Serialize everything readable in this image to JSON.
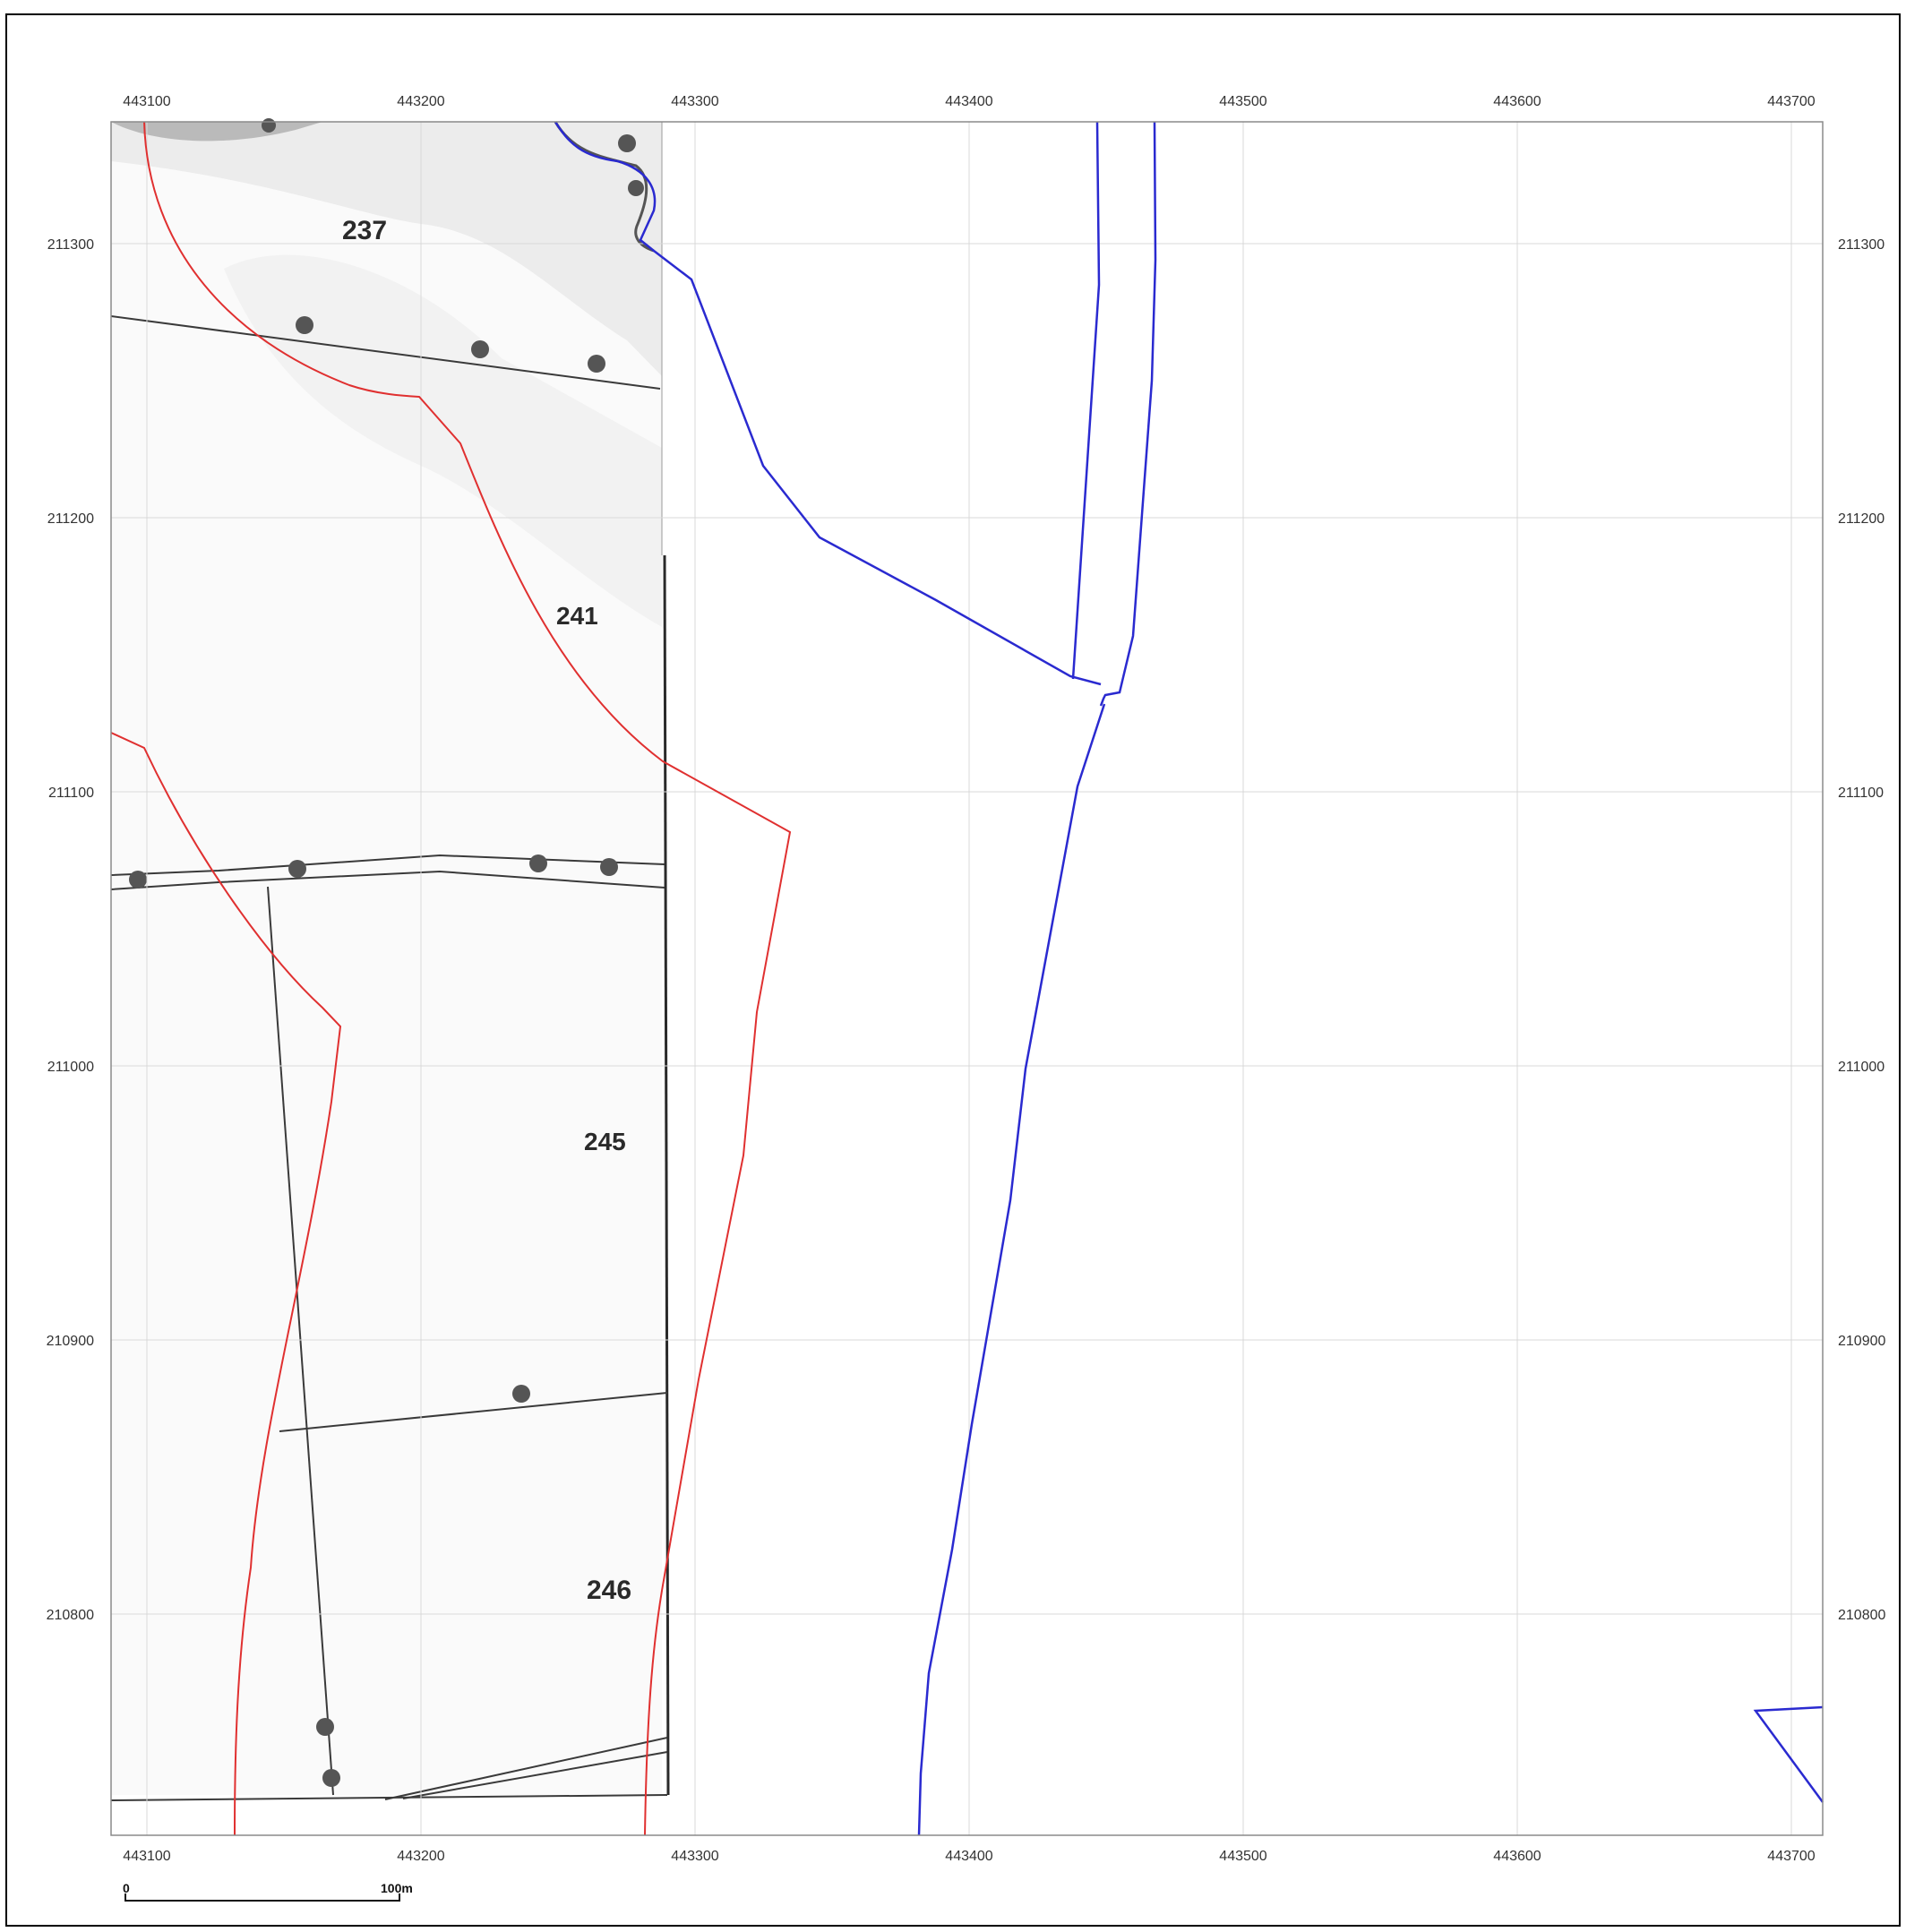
{
  "map": {
    "grid": {
      "eastings": [
        "443100",
        "443200",
        "443300",
        "443400",
        "443500",
        "443600",
        "443700"
      ],
      "northings": [
        "211300",
        "211200",
        "211100",
        "211000",
        "210900",
        "210800"
      ]
    },
    "parcels": [
      {
        "label": "237"
      },
      {
        "label": "241"
      },
      {
        "label": "245"
      },
      {
        "label": "246"
      }
    ],
    "scale_bar": {
      "start_label": "0",
      "end_label": "100m"
    },
    "colors": {
      "frame": "#000000",
      "grid": "#d9d9d9",
      "red_boundary": "#e03030",
      "blue_boundary": "#2a2ad0",
      "historic_ink": "#3a3a3a",
      "historic_paper": "#f4f4f4"
    }
  }
}
